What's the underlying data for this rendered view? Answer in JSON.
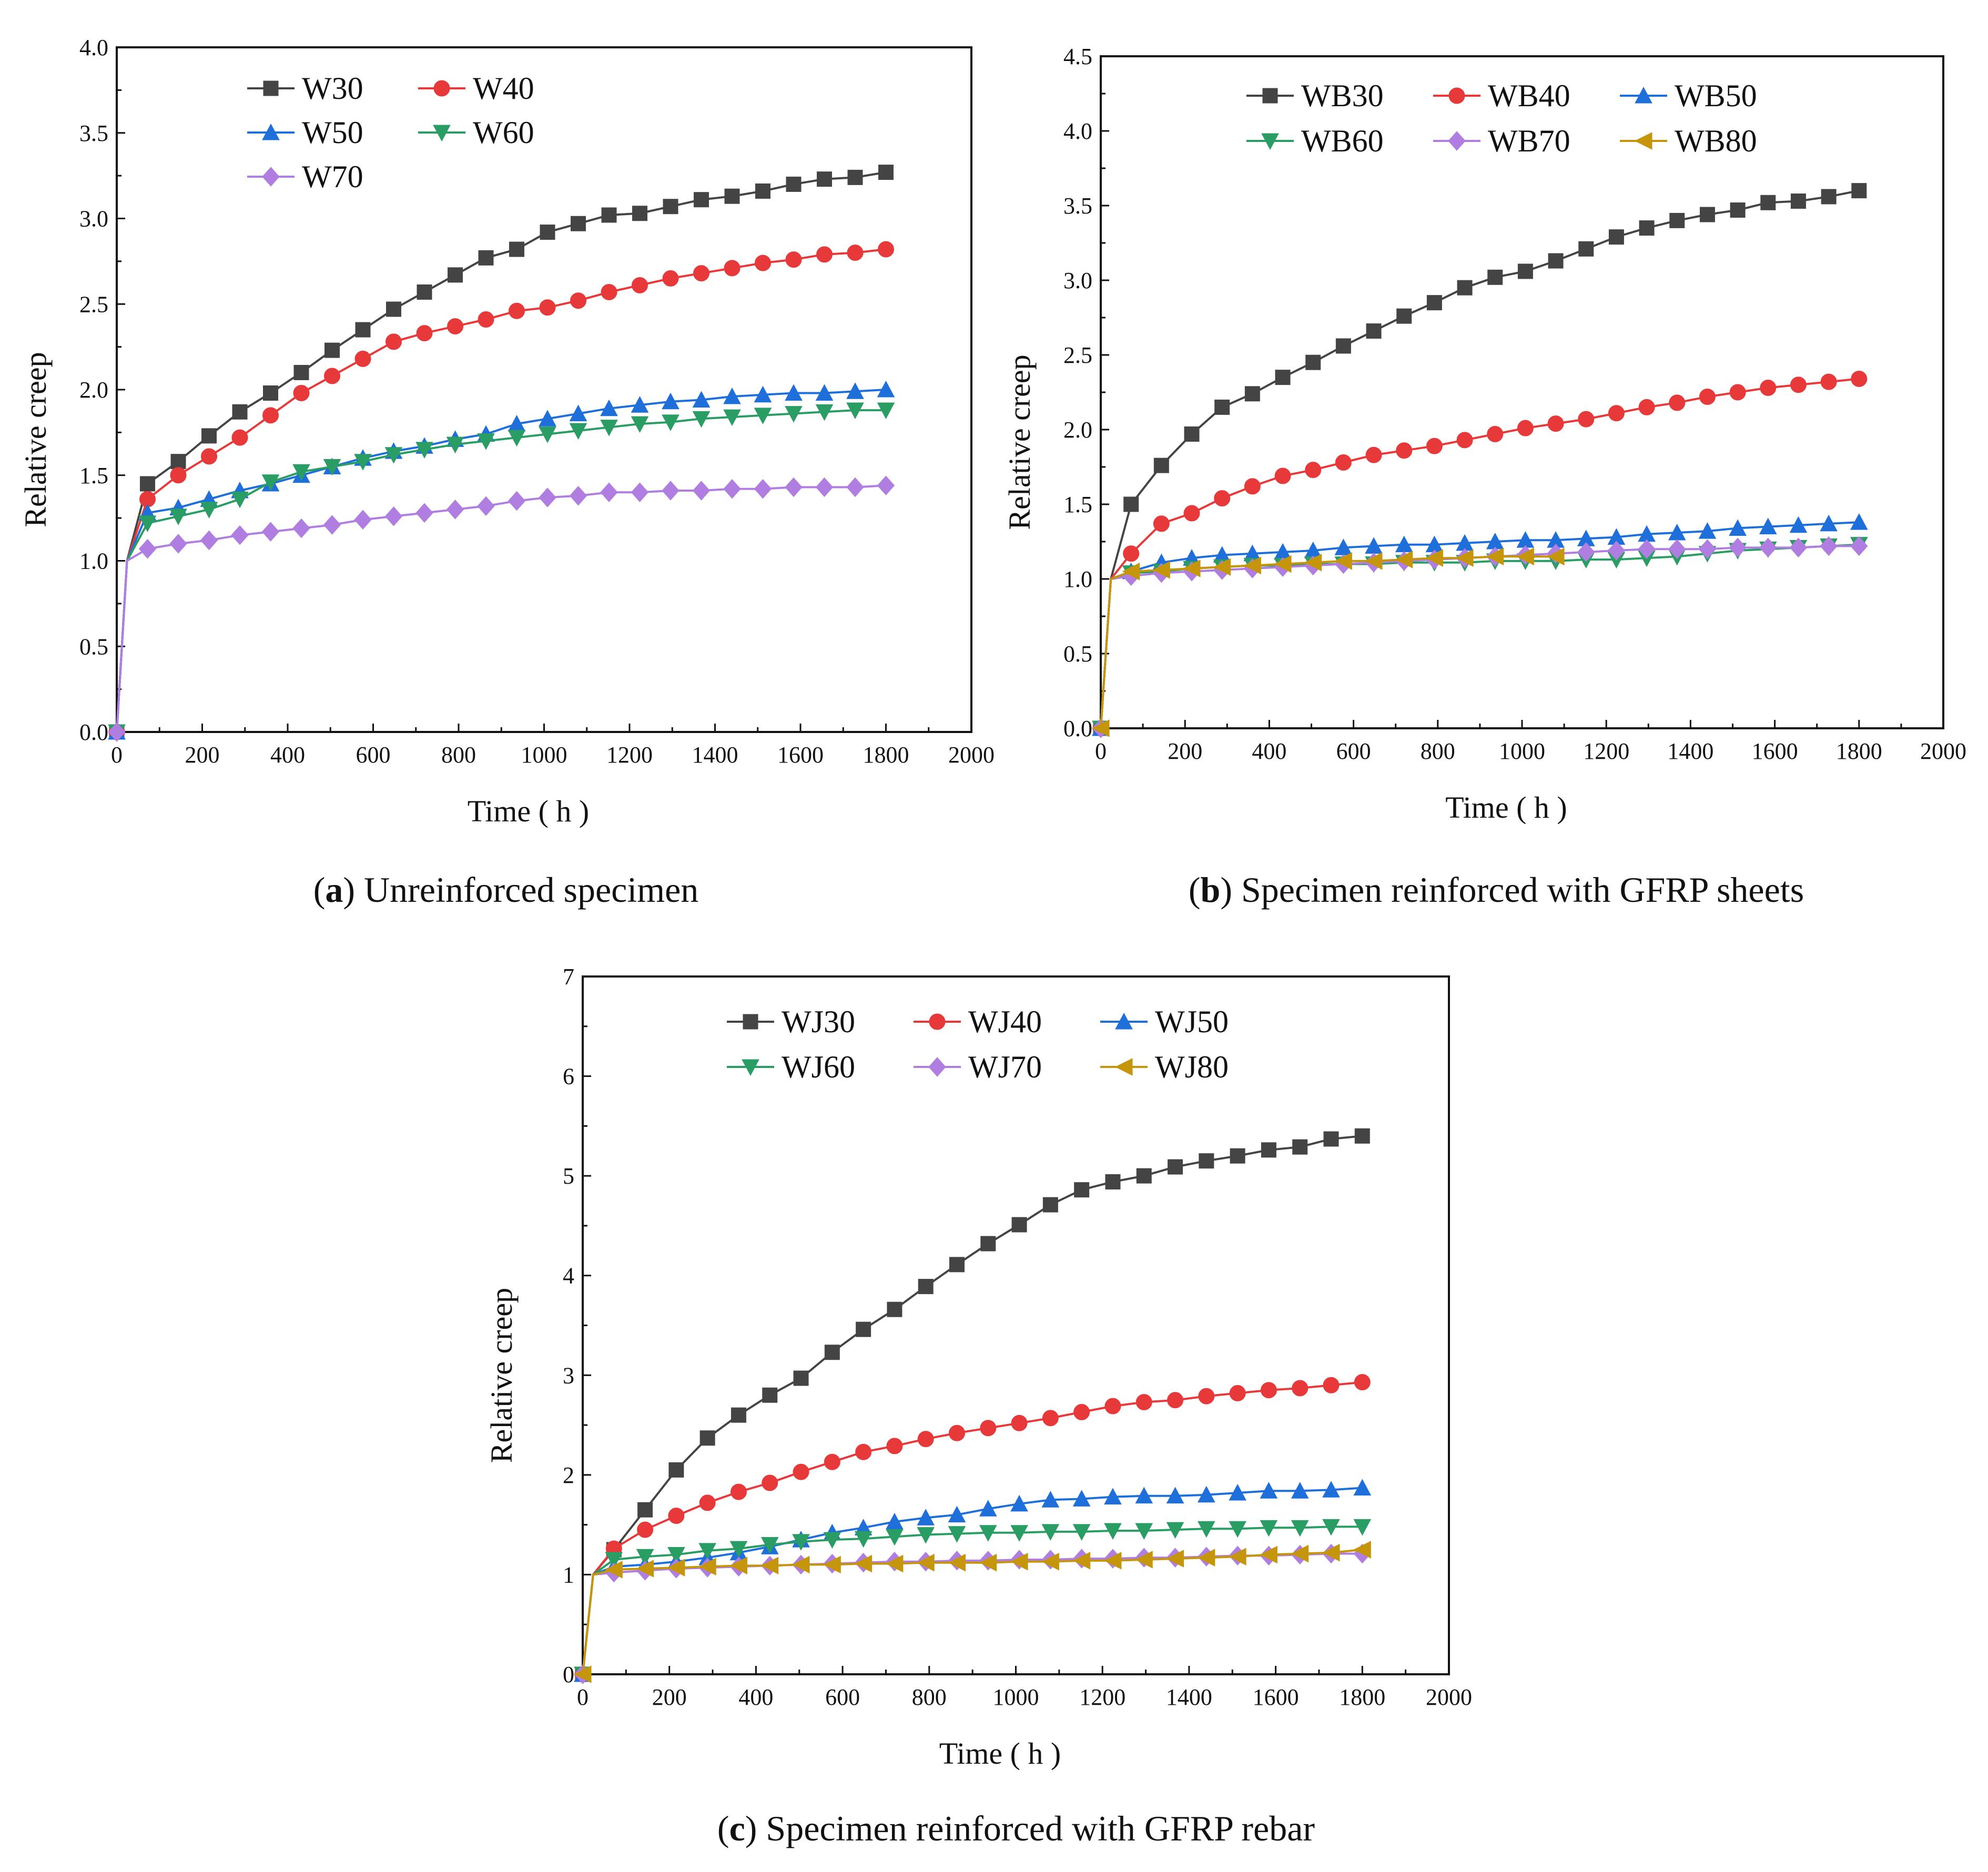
{
  "figure": {
    "markers": [
      "square",
      "circle",
      "triangle-up",
      "triangle-down",
      "diamond",
      "triangle-left"
    ],
    "colors": [
      "#444444",
      "#e8393a",
      "#1f6fdb",
      "#2a9d64",
      "#b07ee0",
      "#c5960b"
    ]
  },
  "chart_data": [
    {
      "id": "a",
      "type": "line",
      "caption_letter": "a",
      "caption_text": "Unreinforced specimen",
      "xlabel": "Time ( h )",
      "ylabel": "Relative  creep",
      "xlim": [
        0,
        2000
      ],
      "ylim": [
        0,
        4.0
      ],
      "xticks": [
        "0",
        "200",
        "400",
        "600",
        "800",
        "1000",
        "1200",
        "1400",
        "1600",
        "1800",
        "2000"
      ],
      "yticks": [
        "0.0",
        "0.5",
        "1.0",
        "1.5",
        "2.0",
        "2.5",
        "3.0",
        "3.5",
        "4.0"
      ],
      "legend_columns": 2,
      "x": [
        0,
        24,
        72,
        144,
        216,
        288,
        360,
        432,
        504,
        576,
        648,
        720,
        792,
        864,
        936,
        1008,
        1080,
        1152,
        1224,
        1296,
        1368,
        1440,
        1512,
        1584,
        1656,
        1728,
        1800
      ],
      "series": [
        {
          "name": "W30",
          "values": [
            0,
            1.0,
            1.45,
            1.58,
            1.73,
            1.87,
            1.98,
            2.1,
            2.23,
            2.35,
            2.47,
            2.57,
            2.67,
            2.77,
            2.82,
            2.92,
            2.97,
            3.02,
            3.03,
            3.07,
            3.11,
            3.13,
            3.16,
            3.2,
            3.23,
            3.24,
            3.27
          ]
        },
        {
          "name": "W40",
          "values": [
            0,
            1.0,
            1.36,
            1.5,
            1.61,
            1.72,
            1.85,
            1.98,
            2.08,
            2.18,
            2.28,
            2.33,
            2.37,
            2.41,
            2.46,
            2.48,
            2.52,
            2.57,
            2.61,
            2.65,
            2.68,
            2.71,
            2.74,
            2.76,
            2.79,
            2.8,
            2.82
          ]
        },
        {
          "name": "W50",
          "values": [
            0,
            1.0,
            1.28,
            1.31,
            1.36,
            1.41,
            1.45,
            1.5,
            1.55,
            1.6,
            1.64,
            1.67,
            1.71,
            1.74,
            1.8,
            1.83,
            1.86,
            1.89,
            1.91,
            1.93,
            1.94,
            1.96,
            1.97,
            1.98,
            1.98,
            1.99,
            2.0
          ]
        },
        {
          "name": "W60",
          "values": [
            0,
            1.0,
            1.22,
            1.26,
            1.3,
            1.36,
            1.46,
            1.52,
            1.55,
            1.58,
            1.62,
            1.65,
            1.68,
            1.7,
            1.72,
            1.74,
            1.76,
            1.78,
            1.8,
            1.81,
            1.83,
            1.84,
            1.85,
            1.86,
            1.87,
            1.88,
            1.88
          ]
        },
        {
          "name": "W70",
          "values": [
            0,
            1.0,
            1.07,
            1.1,
            1.12,
            1.15,
            1.17,
            1.19,
            1.21,
            1.24,
            1.26,
            1.28,
            1.3,
            1.32,
            1.35,
            1.37,
            1.38,
            1.4,
            1.4,
            1.41,
            1.41,
            1.42,
            1.42,
            1.43,
            1.43,
            1.43,
            1.44
          ]
        }
      ]
    },
    {
      "id": "b",
      "type": "line",
      "caption_letter": "b",
      "caption_text": "Specimen reinforced with GFRP sheets",
      "xlabel": "Time ( h )",
      "ylabel": "Relative  creep",
      "xlim": [
        0,
        2000
      ],
      "ylim": [
        0,
        4.5
      ],
      "xticks": [
        "0",
        "200",
        "400",
        "600",
        "800",
        "1000",
        "1200",
        "1400",
        "1600",
        "1800",
        "2000"
      ],
      "yticks": [
        "0.0",
        "0.5",
        "1.0",
        "1.5",
        "2.0",
        "2.5",
        "3.0",
        "3.5",
        "4.0",
        "4.5"
      ],
      "legend_columns": 3,
      "x": [
        0,
        24,
        72,
        144,
        216,
        288,
        360,
        432,
        504,
        576,
        648,
        720,
        792,
        864,
        936,
        1008,
        1080,
        1152,
        1224,
        1296,
        1368,
        1440,
        1512,
        1584,
        1656,
        1728,
        1800
      ],
      "series": [
        {
          "name": "WB30",
          "values": [
            0,
            1.0,
            1.5,
            1.76,
            1.97,
            2.15,
            2.24,
            2.35,
            2.45,
            2.56,
            2.66,
            2.76,
            2.85,
            2.95,
            3.02,
            3.06,
            3.13,
            3.21,
            3.29,
            3.35,
            3.4,
            3.44,
            3.47,
            3.52,
            3.53,
            3.56,
            3.6
          ]
        },
        {
          "name": "WB40",
          "values": [
            0,
            1.0,
            1.17,
            1.37,
            1.44,
            1.54,
            1.62,
            1.69,
            1.73,
            1.78,
            1.83,
            1.86,
            1.89,
            1.93,
            1.97,
            2.01,
            2.04,
            2.07,
            2.11,
            2.15,
            2.18,
            2.22,
            2.25,
            2.28,
            2.3,
            2.32,
            2.34
          ]
        },
        {
          "name": "WB50",
          "values": [
            0,
            1.0,
            1.05,
            1.11,
            1.14,
            1.16,
            1.17,
            1.18,
            1.19,
            1.21,
            1.22,
            1.23,
            1.23,
            1.24,
            1.25,
            1.26,
            1.26,
            1.27,
            1.28,
            1.3,
            1.31,
            1.32,
            1.34,
            1.35,
            1.36,
            1.37,
            1.38
          ]
        },
        {
          "name": "WB60",
          "values": [
            0,
            1.0,
            1.04,
            1.05,
            1.07,
            1.08,
            1.09,
            1.09,
            1.1,
            1.1,
            1.1,
            1.11,
            1.11,
            1.11,
            1.12,
            1.12,
            1.12,
            1.13,
            1.13,
            1.14,
            1.15,
            1.17,
            1.19,
            1.2,
            1.21,
            1.22,
            1.23
          ]
        },
        {
          "name": "WB70",
          "values": [
            0,
            1.0,
            1.02,
            1.04,
            1.05,
            1.06,
            1.07,
            1.08,
            1.09,
            1.1,
            1.11,
            1.12,
            1.13,
            1.14,
            1.15,
            1.16,
            1.17,
            1.18,
            1.19,
            1.2,
            1.2,
            1.2,
            1.21,
            1.21,
            1.21,
            1.22,
            1.22
          ]
        },
        {
          "name": "WB80",
          "values": [
            0,
            1.0,
            1.05,
            1.06,
            1.07,
            1.08,
            1.09,
            1.1,
            1.11,
            1.12,
            1.12,
            1.13,
            1.14,
            1.14,
            1.15,
            1.15,
            1.15,
            null,
            null,
            null,
            null,
            null,
            null,
            null,
            null,
            null,
            null
          ]
        }
      ]
    },
    {
      "id": "c",
      "type": "line",
      "caption_letter": "c",
      "caption_text": "Specimen reinforced with GFRP rebar",
      "xlabel": "Time ( h )",
      "ylabel": "Relative  creep",
      "xlim": [
        0,
        2000
      ],
      "ylim": [
        0,
        7
      ],
      "xticks": [
        "0",
        "200",
        "400",
        "600",
        "800",
        "1000",
        "1200",
        "1400",
        "1600",
        "1800",
        "2000"
      ],
      "yticks": [
        "0",
        "1",
        "2",
        "3",
        "4",
        "5",
        "6",
        "7"
      ],
      "legend_columns": 3,
      "x": [
        0,
        24,
        72,
        144,
        216,
        288,
        360,
        432,
        504,
        576,
        648,
        720,
        792,
        864,
        936,
        1008,
        1080,
        1152,
        1224,
        1296,
        1368,
        1440,
        1512,
        1584,
        1656,
        1728,
        1800
      ],
      "series": [
        {
          "name": "WJ30",
          "values": [
            0,
            1.0,
            1.25,
            1.65,
            2.05,
            2.37,
            2.6,
            2.8,
            2.97,
            3.23,
            3.46,
            3.66,
            3.89,
            4.11,
            4.32,
            4.51,
            4.71,
            4.86,
            4.94,
            5.0,
            5.09,
            5.15,
            5.2,
            5.26,
            5.29,
            5.37,
            5.4
          ]
        },
        {
          "name": "WJ40",
          "values": [
            0,
            1.0,
            1.26,
            1.45,
            1.59,
            1.72,
            1.83,
            1.92,
            2.03,
            2.13,
            2.23,
            2.29,
            2.36,
            2.42,
            2.47,
            2.52,
            2.57,
            2.63,
            2.69,
            2.73,
            2.75,
            2.79,
            2.82,
            2.85,
            2.87,
            2.9,
            2.93
          ]
        },
        {
          "name": "WJ50",
          "values": [
            0,
            1.0,
            1.08,
            1.1,
            1.13,
            1.17,
            1.22,
            1.28,
            1.35,
            1.42,
            1.47,
            1.53,
            1.57,
            1.6,
            1.66,
            1.71,
            1.75,
            1.76,
            1.78,
            1.79,
            1.79,
            1.8,
            1.82,
            1.84,
            1.84,
            1.85,
            1.87
          ]
        },
        {
          "name": "WJ60",
          "values": [
            0,
            1.0,
            1.15,
            1.18,
            1.2,
            1.24,
            1.26,
            1.3,
            1.33,
            1.35,
            1.36,
            1.38,
            1.4,
            1.41,
            1.42,
            1.42,
            1.43,
            1.43,
            1.44,
            1.44,
            1.45,
            1.46,
            1.46,
            1.47,
            1.47,
            1.48,
            1.48
          ]
        },
        {
          "name": "WJ70",
          "values": [
            0,
            1.0,
            1.02,
            1.04,
            1.06,
            1.07,
            1.08,
            1.09,
            1.1,
            1.11,
            1.12,
            1.13,
            1.13,
            1.14,
            1.14,
            1.15,
            1.15,
            1.16,
            1.16,
            1.17,
            1.17,
            1.18,
            1.19,
            1.19,
            1.2,
            1.21,
            1.21
          ]
        },
        {
          "name": "WJ80",
          "values": [
            0,
            1.0,
            1.05,
            1.06,
            1.07,
            1.08,
            1.09,
            1.09,
            1.1,
            1.1,
            1.11,
            1.11,
            1.12,
            1.12,
            1.12,
            1.13,
            1.13,
            1.14,
            1.14,
            1.15,
            1.16,
            1.17,
            1.18,
            1.2,
            1.21,
            1.22,
            1.25
          ]
        }
      ]
    }
  ]
}
